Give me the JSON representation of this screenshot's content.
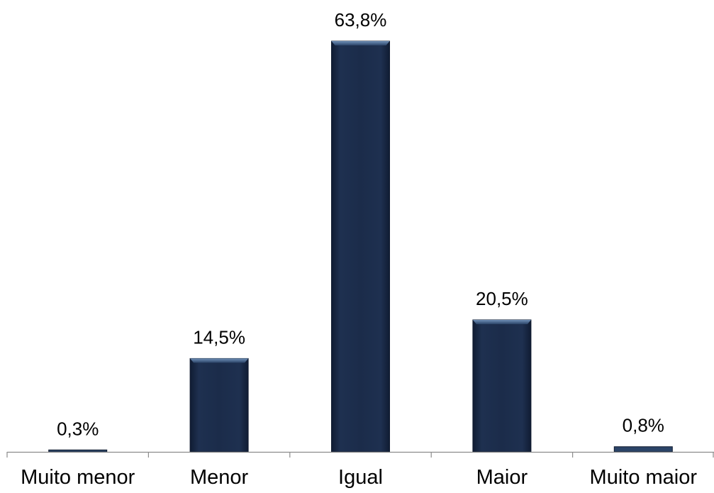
{
  "chart_data": {
    "type": "bar",
    "title": "",
    "xlabel": "",
    "ylabel": "",
    "categories": [
      "Muito menor",
      "Menor",
      "Igual",
      "Maior",
      "Muito maior"
    ],
    "values": [
      0.3,
      14.5,
      63.8,
      20.5,
      0.8
    ],
    "value_labels": [
      "0,3%",
      "14,5%",
      "63,8%",
      "20,5%",
      "0,8%"
    ],
    "unit": "%",
    "ylim": [
      0,
      63.8
    ],
    "grid": false,
    "legend": "none",
    "colors": {
      "bar": "#1b2c4a",
      "bar_edge": "#0f1a2e",
      "bar_highlight": "#5d7fa8",
      "axis": "#8c8c8c"
    }
  }
}
